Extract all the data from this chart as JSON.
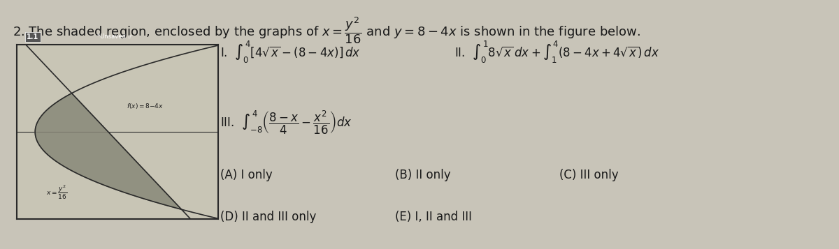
{
  "background_color": "#c8c4b8",
  "title": "2. The shaded region, enclosed by the graphs of $x = \\dfrac{y^2}{16}$ and $y = 8 - 4x$ is shown in the figure below.",
  "title_fontsize": 13,
  "title_color": "#1a1a1a",
  "option_A": "(A) I only",
  "option_B": "(B) II only",
  "option_C": "(C) III only",
  "option_D": "(D) II and III only",
  "option_E": "(E) I, II and III",
  "integral_I": "I.  $\\int_0^4 [4\\sqrt{x} - (8-4x)]\\,dx$",
  "integral_II": "II.  $\\int_0^1 8\\sqrt{x}\\,dx + \\int_1^4 (8 - 4x + 4\\sqrt{x})\\,dx$",
  "integral_III": "III.  $\\int_{-8}^{4} \\left(\\dfrac{8-x}{4} - \\dfrac{x^2}{16}\\right)dx$",
  "graph_bg": "#d8d4c8",
  "graph_border": "#2a2a2a",
  "curve_color": "#2a2a2a",
  "shaded_color": "#a0a090",
  "label_curve1": "$f(x){=}8{-}4x$",
  "label_curve2": "$x{=}\\dfrac{y^2}{16}$"
}
